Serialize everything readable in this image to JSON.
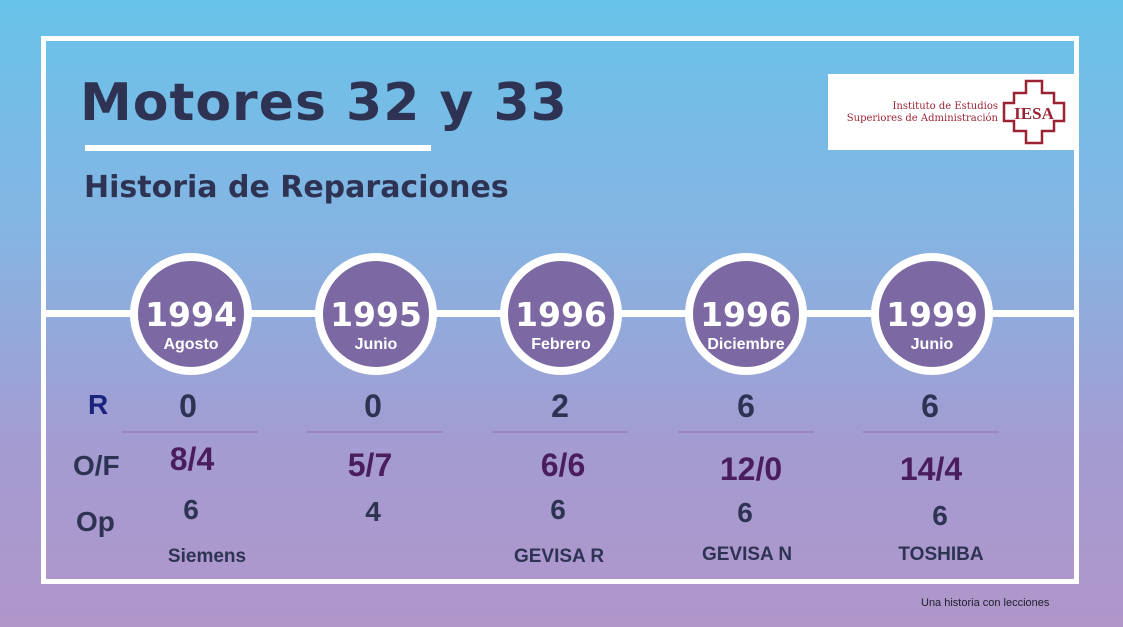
{
  "title": "Motores 32 y 33",
  "subtitle": "Historia de Reparaciones",
  "logo": {
    "line1": "Instituto de Estudios",
    "line2": "Superiores de Administración",
    "mark": "IESA"
  },
  "row_labels": {
    "r": "R",
    "of": "O/F",
    "op": "Op"
  },
  "events": [
    {
      "year": "1994",
      "month": "Agosto",
      "r": "0",
      "of": "8/4",
      "op": "6",
      "maker": "Siemens"
    },
    {
      "year": "1995",
      "month": "Junio",
      "r": "0",
      "of": "5/7",
      "op": "4",
      "maker": ""
    },
    {
      "year": "1996",
      "month": "Febrero",
      "r": "2",
      "of": "6/6",
      "op": "6",
      "maker": "GEVISA R"
    },
    {
      "year": "1996",
      "month": "Diciembre",
      "r": "6",
      "of": "12/0",
      "op": "6",
      "maker": "GEVISA N"
    },
    {
      "year": "1999",
      "month": "Junio",
      "r": "6",
      "of": "14/4",
      "op": "6",
      "maker": "TOSHIBA"
    }
  ],
  "footer": "Una historia con lecciones",
  "colors": {
    "circle": "#7c69a4",
    "title": "#2e3354",
    "of_values": "#4a1d5c",
    "logo": "#9b2434"
  }
}
